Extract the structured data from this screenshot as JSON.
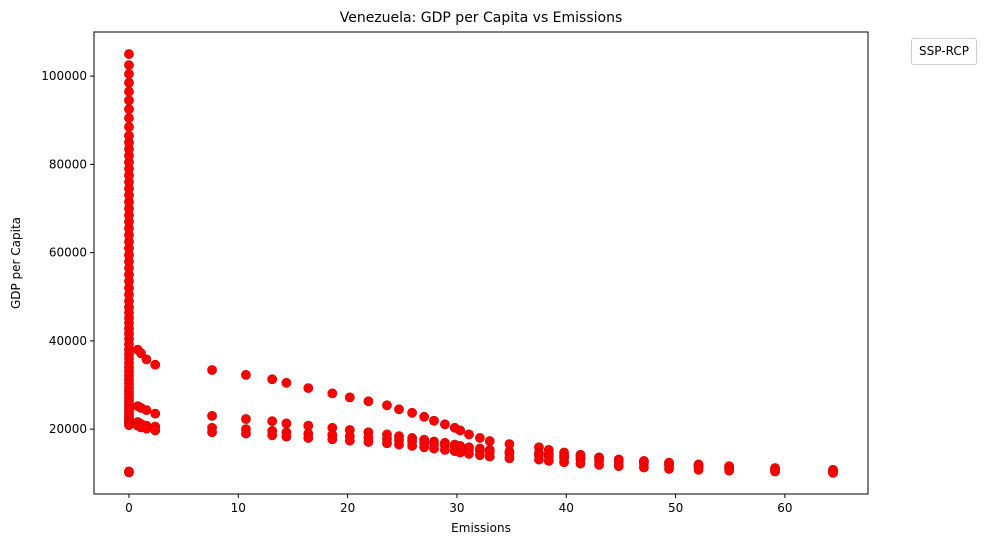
{
  "chart_data": {
    "type": "scatter",
    "title": "Venezuela: GDP per Capita vs Emissions",
    "xlabel": "Emissions",
    "ylabel": "GDP per Capita",
    "xlim": [
      -3.2,
      67.6
    ],
    "ylim": [
      5300,
      110000
    ],
    "xticks": [
      0,
      10,
      20,
      30,
      40,
      50,
      60
    ],
    "yticks": [
      20000,
      40000,
      60000,
      80000,
      100000
    ],
    "grid": false,
    "legend": {
      "title": "SSP-RCP",
      "placement": "outside top-right"
    },
    "marker_color": "#ff0000",
    "marker_edge_color": "#cc0000",
    "series": [
      {
        "points": [
          [
            0,
            10200
          ],
          [
            0,
            10400
          ],
          [
            0,
            20900
          ],
          [
            0,
            21400
          ],
          [
            0,
            21800
          ],
          [
            0,
            22300
          ],
          [
            0,
            22800
          ],
          [
            0,
            23300
          ],
          [
            0,
            23800
          ],
          [
            0,
            24400
          ],
          [
            0,
            25000
          ],
          [
            0,
            25600
          ],
          [
            0,
            26300
          ],
          [
            0,
            27000
          ],
          [
            0,
            27800
          ],
          [
            0,
            28600
          ],
          [
            0,
            29400
          ],
          [
            0,
            30300
          ],
          [
            0,
            31200
          ],
          [
            0,
            32100
          ],
          [
            0,
            33000
          ],
          [
            0,
            34000
          ],
          [
            0,
            35000
          ],
          [
            0,
            36000
          ],
          [
            0,
            37000
          ],
          [
            0,
            38000
          ],
          [
            0,
            39200
          ],
          [
            0,
            40400
          ],
          [
            0,
            41600
          ],
          [
            0,
            42800
          ],
          [
            0,
            44000
          ],
          [
            0,
            45200
          ],
          [
            0,
            46400
          ],
          [
            0,
            47600
          ],
          [
            0,
            49000
          ],
          [
            0,
            50500
          ],
          [
            0,
            52000
          ],
          [
            0,
            53500
          ],
          [
            0,
            55000
          ],
          [
            0,
            56500
          ],
          [
            0,
            58000
          ],
          [
            0,
            59500
          ],
          [
            0,
            61000
          ],
          [
            0,
            62500
          ],
          [
            0,
            64000
          ],
          [
            0,
            65500
          ],
          [
            0,
            67000
          ],
          [
            0,
            68500
          ],
          [
            0,
            70000
          ],
          [
            0,
            71500
          ],
          [
            0,
            73000
          ],
          [
            0,
            74500
          ],
          [
            0,
            76000
          ],
          [
            0,
            77500
          ],
          [
            0,
            79000
          ],
          [
            0,
            80500
          ],
          [
            0,
            82000
          ],
          [
            0,
            83500
          ],
          [
            0,
            85000
          ],
          [
            0,
            86500
          ],
          [
            0,
            88500
          ],
          [
            0,
            90500
          ],
          [
            0,
            92500
          ],
          [
            0,
            94500
          ],
          [
            0,
            96500
          ],
          [
            0,
            98500
          ],
          [
            0,
            100500
          ],
          [
            0,
            102500
          ],
          [
            0,
            105000
          ],
          [
            0.8,
            38000
          ],
          [
            1.1,
            37200
          ],
          [
            1.6,
            35800
          ],
          [
            2.4,
            34600
          ],
          [
            7.6,
            33400
          ],
          [
            10.7,
            32300
          ],
          [
            13.1,
            31300
          ],
          [
            14.4,
            30500
          ],
          [
            16.4,
            29300
          ],
          [
            18.6,
            28100
          ],
          [
            20.2,
            27200
          ],
          [
            21.9,
            26300
          ],
          [
            23.6,
            25400
          ],
          [
            24.7,
            24500
          ],
          [
            25.9,
            23700
          ],
          [
            27.0,
            22800
          ],
          [
            27.9,
            21900
          ],
          [
            28.9,
            21100
          ],
          [
            29.8,
            20300
          ],
          [
            30.3,
            19700
          ],
          [
            31.1,
            18800
          ],
          [
            32.1,
            18000
          ],
          [
            33.0,
            17300
          ],
          [
            34.8,
            16600
          ],
          [
            37.5,
            15900
          ],
          [
            38.4,
            15300
          ],
          [
            39.8,
            14700
          ],
          [
            41.3,
            14200
          ],
          [
            43.0,
            13600
          ],
          [
            44.8,
            13100
          ],
          [
            47.1,
            12600
          ],
          [
            49.4,
            12100
          ],
          [
            52.1,
            11700
          ],
          [
            54.9,
            11300
          ],
          [
            59.1,
            10900
          ],
          [
            64.4,
            10500
          ],
          [
            0.8,
            25200
          ],
          [
            1.1,
            24800
          ],
          [
            1.6,
            24300
          ],
          [
            2.4,
            23500
          ],
          [
            7.6,
            23000
          ],
          [
            10.7,
            22300
          ],
          [
            13.1,
            21800
          ],
          [
            14.4,
            21300
          ],
          [
            16.4,
            20800
          ],
          [
            18.6,
            20300
          ],
          [
            20.2,
            19800
          ],
          [
            21.9,
            19300
          ],
          [
            23.6,
            18800
          ],
          [
            24.7,
            18400
          ],
          [
            25.9,
            18000
          ],
          [
            27.0,
            17600
          ],
          [
            27.9,
            17200
          ],
          [
            28.9,
            16900
          ],
          [
            29.8,
            16500
          ],
          [
            30.3,
            16200
          ],
          [
            31.1,
            15900
          ],
          [
            32.1,
            15600
          ],
          [
            33.0,
            15300
          ],
          [
            34.8,
            14900
          ],
          [
            37.5,
            14600
          ],
          [
            38.4,
            14300
          ],
          [
            39.8,
            14000
          ],
          [
            41.3,
            13700
          ],
          [
            43.0,
            13400
          ],
          [
            44.8,
            13100
          ],
          [
            47.1,
            12800
          ],
          [
            49.4,
            12400
          ],
          [
            52.1,
            12000
          ],
          [
            54.9,
            11600
          ],
          [
            59.1,
            11200
          ],
          [
            64.4,
            10800
          ],
          [
            0.8,
            21600
          ],
          [
            1.1,
            21200
          ],
          [
            1.6,
            20800
          ],
          [
            2.4,
            20600
          ],
          [
            7.6,
            20300
          ],
          [
            10.7,
            20000
          ],
          [
            13.1,
            19600
          ],
          [
            14.4,
            19300
          ],
          [
            16.4,
            19000
          ],
          [
            18.6,
            18700
          ],
          [
            20.2,
            18400
          ],
          [
            21.9,
            18100
          ],
          [
            23.6,
            17800
          ],
          [
            24.7,
            17500
          ],
          [
            25.9,
            17200
          ],
          [
            27.0,
            16900
          ],
          [
            27.9,
            16600
          ],
          [
            28.9,
            16300
          ],
          [
            29.8,
            16000
          ],
          [
            30.3,
            15700
          ],
          [
            31.1,
            15400
          ],
          [
            32.1,
            15100
          ],
          [
            33.0,
            14800
          ],
          [
            34.8,
            14500
          ],
          [
            37.5,
            14100
          ],
          [
            38.4,
            13800
          ],
          [
            39.8,
            13500
          ],
          [
            41.3,
            13200
          ],
          [
            43.0,
            12900
          ],
          [
            44.8,
            12600
          ],
          [
            47.1,
            12200
          ],
          [
            49.4,
            11800
          ],
          [
            52.1,
            11400
          ],
          [
            54.9,
            11000
          ],
          [
            59.1,
            10700
          ],
          [
            64.4,
            10300
          ],
          [
            0.8,
            20800
          ],
          [
            1.1,
            20400
          ],
          [
            1.6,
            20100
          ],
          [
            2.4,
            19700
          ],
          [
            7.6,
            19300
          ],
          [
            10.7,
            19000
          ],
          [
            13.1,
            18600
          ],
          [
            14.4,
            18300
          ],
          [
            16.4,
            18000
          ],
          [
            18.6,
            17700
          ],
          [
            20.2,
            17400
          ],
          [
            21.9,
            17100
          ],
          [
            23.6,
            16800
          ],
          [
            24.7,
            16500
          ],
          [
            25.9,
            16200
          ],
          [
            27.0,
            15900
          ],
          [
            27.9,
            15600
          ],
          [
            28.9,
            15300
          ],
          [
            29.8,
            15000
          ],
          [
            30.3,
            14700
          ],
          [
            31.1,
            14400
          ],
          [
            32.1,
            14100
          ],
          [
            33.0,
            13800
          ],
          [
            34.8,
            13400
          ],
          [
            37.5,
            13100
          ],
          [
            38.4,
            12800
          ],
          [
            39.8,
            12500
          ],
          [
            41.3,
            12200
          ],
          [
            43.0,
            11900
          ],
          [
            44.8,
            11600
          ],
          [
            47.1,
            11300
          ],
          [
            49.4,
            11000
          ],
          [
            52.1,
            10800
          ],
          [
            54.9,
            10600
          ],
          [
            59.1,
            10400
          ],
          [
            64.4,
            10100
          ]
        ]
      }
    ]
  }
}
